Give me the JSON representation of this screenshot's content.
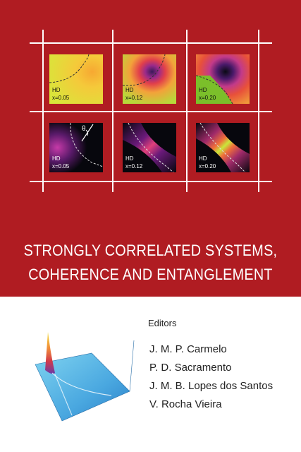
{
  "cover": {
    "title_line1": "STRONGLY CORRELATED SYSTEMS,",
    "title_line2": "COHERENCE AND ENTANGLEMENT",
    "background_color": "#b01c22"
  },
  "panels": [
    {
      "label": "HD",
      "x_value": "x=0.05"
    },
    {
      "label": "HD",
      "x_value": "x=0.12"
    },
    {
      "label": "HD",
      "x_value": "x=0.20"
    },
    {
      "label": "HD",
      "x_value": "x=0.05"
    },
    {
      "label": "HD",
      "x_value": "x=0.12"
    },
    {
      "label": "HD",
      "x_value": "x=0.20"
    }
  ],
  "theta_symbol": "θ",
  "editors": {
    "label": "Editors",
    "names": [
      "J. M. P. Carmelo",
      "P. D. Sacramento",
      "J. M. B. Lopes dos Santos",
      "V. Rocha Vieira"
    ]
  }
}
